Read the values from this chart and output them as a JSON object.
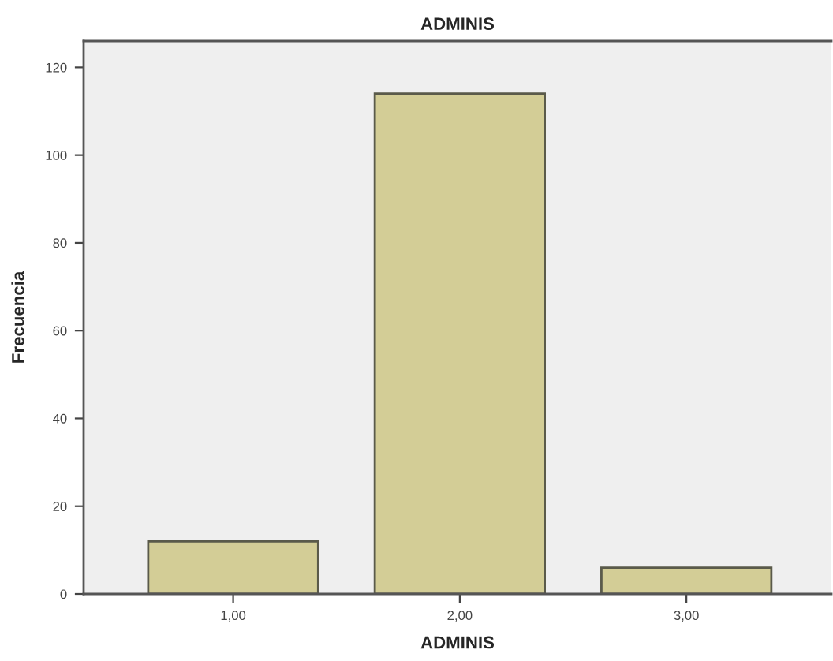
{
  "chart_data": {
    "type": "bar",
    "title": "ADMINIS",
    "xlabel": "ADMINIS",
    "ylabel": "Frecuencia",
    "categories": [
      "1,00",
      "2,00",
      "3,00"
    ],
    "values": [
      12,
      114,
      6
    ],
    "color": "#d3cd96",
    "ylim": [
      0,
      126
    ],
    "yticks": [
      0,
      20,
      40,
      60,
      80,
      100,
      120
    ],
    "grid": false
  }
}
